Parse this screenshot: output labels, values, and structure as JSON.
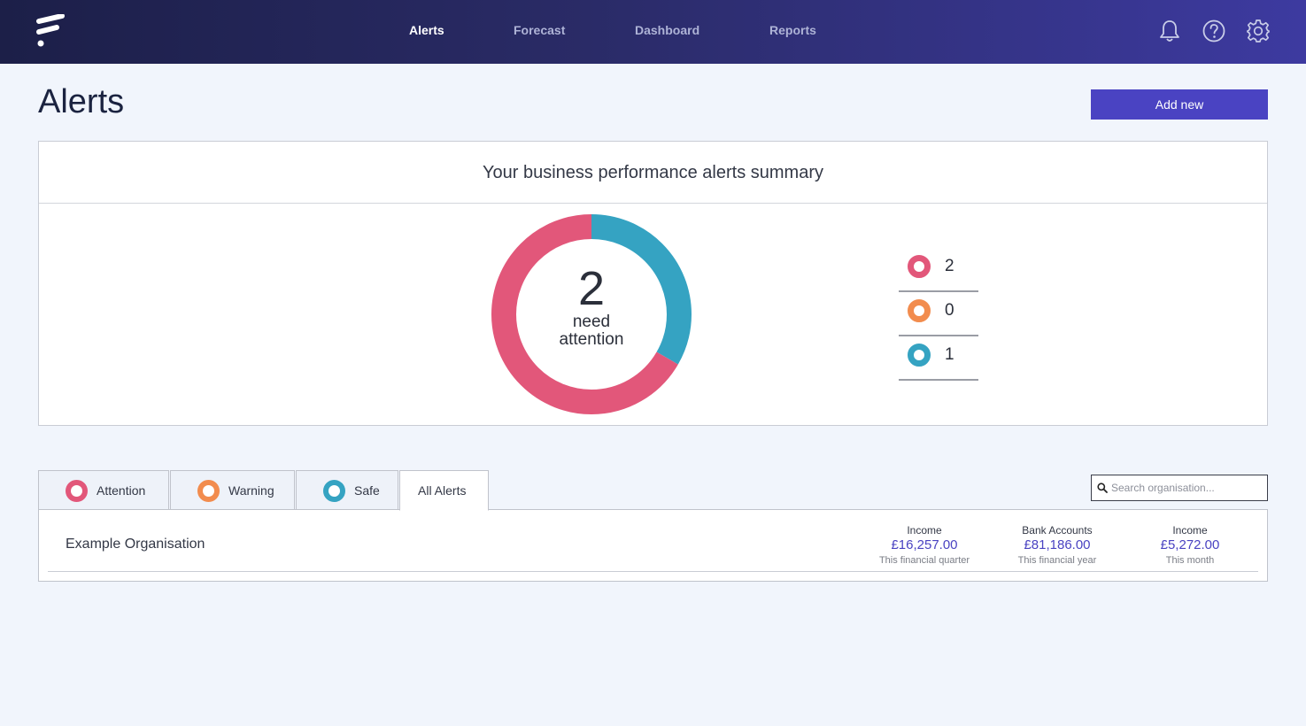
{
  "nav": {
    "items": [
      {
        "label": "Alerts",
        "active": true
      },
      {
        "label": "Forecast",
        "active": false
      },
      {
        "label": "Dashboard",
        "active": false
      },
      {
        "label": "Reports",
        "active": false
      }
    ],
    "icons": [
      "bell-icon",
      "help-icon",
      "gear-icon"
    ]
  },
  "page": {
    "title": "Alerts",
    "add_button_label": "Add new"
  },
  "summary": {
    "title": "Your business performance alerts summary",
    "center_count": "2",
    "center_line1": "need",
    "center_line2": "attention",
    "legend": [
      {
        "status": "attention",
        "count": "2",
        "color": "#e2577a"
      },
      {
        "status": "warning",
        "count": "0",
        "color": "#f28c4e"
      },
      {
        "status": "safe",
        "count": "1",
        "color": "#35a3c2"
      }
    ]
  },
  "tabs": [
    {
      "label": "Attention",
      "color": "#e2577a",
      "active": false
    },
    {
      "label": "Warning",
      "color": "#f28c4e",
      "active": false
    },
    {
      "label": "Safe",
      "color": "#35a3c2",
      "active": false
    },
    {
      "label": "All Alerts",
      "active": true
    }
  ],
  "search": {
    "placeholder": "Search organisation...",
    "value": ""
  },
  "organisations": [
    {
      "name": "Example Organisation",
      "metrics": [
        {
          "label": "Income",
          "value": "£16,257.00",
          "period": "This financial quarter"
        },
        {
          "label": "Bank Accounts",
          "value": "£81,186.00",
          "period": "This financial year"
        },
        {
          "label": "Income",
          "value": "£5,272.00",
          "period": "This month"
        }
      ]
    }
  ],
  "colors": {
    "accent": "#4a43c2",
    "attention": "#e2577a",
    "warning": "#f28c4e",
    "safe": "#35a3c2"
  }
}
